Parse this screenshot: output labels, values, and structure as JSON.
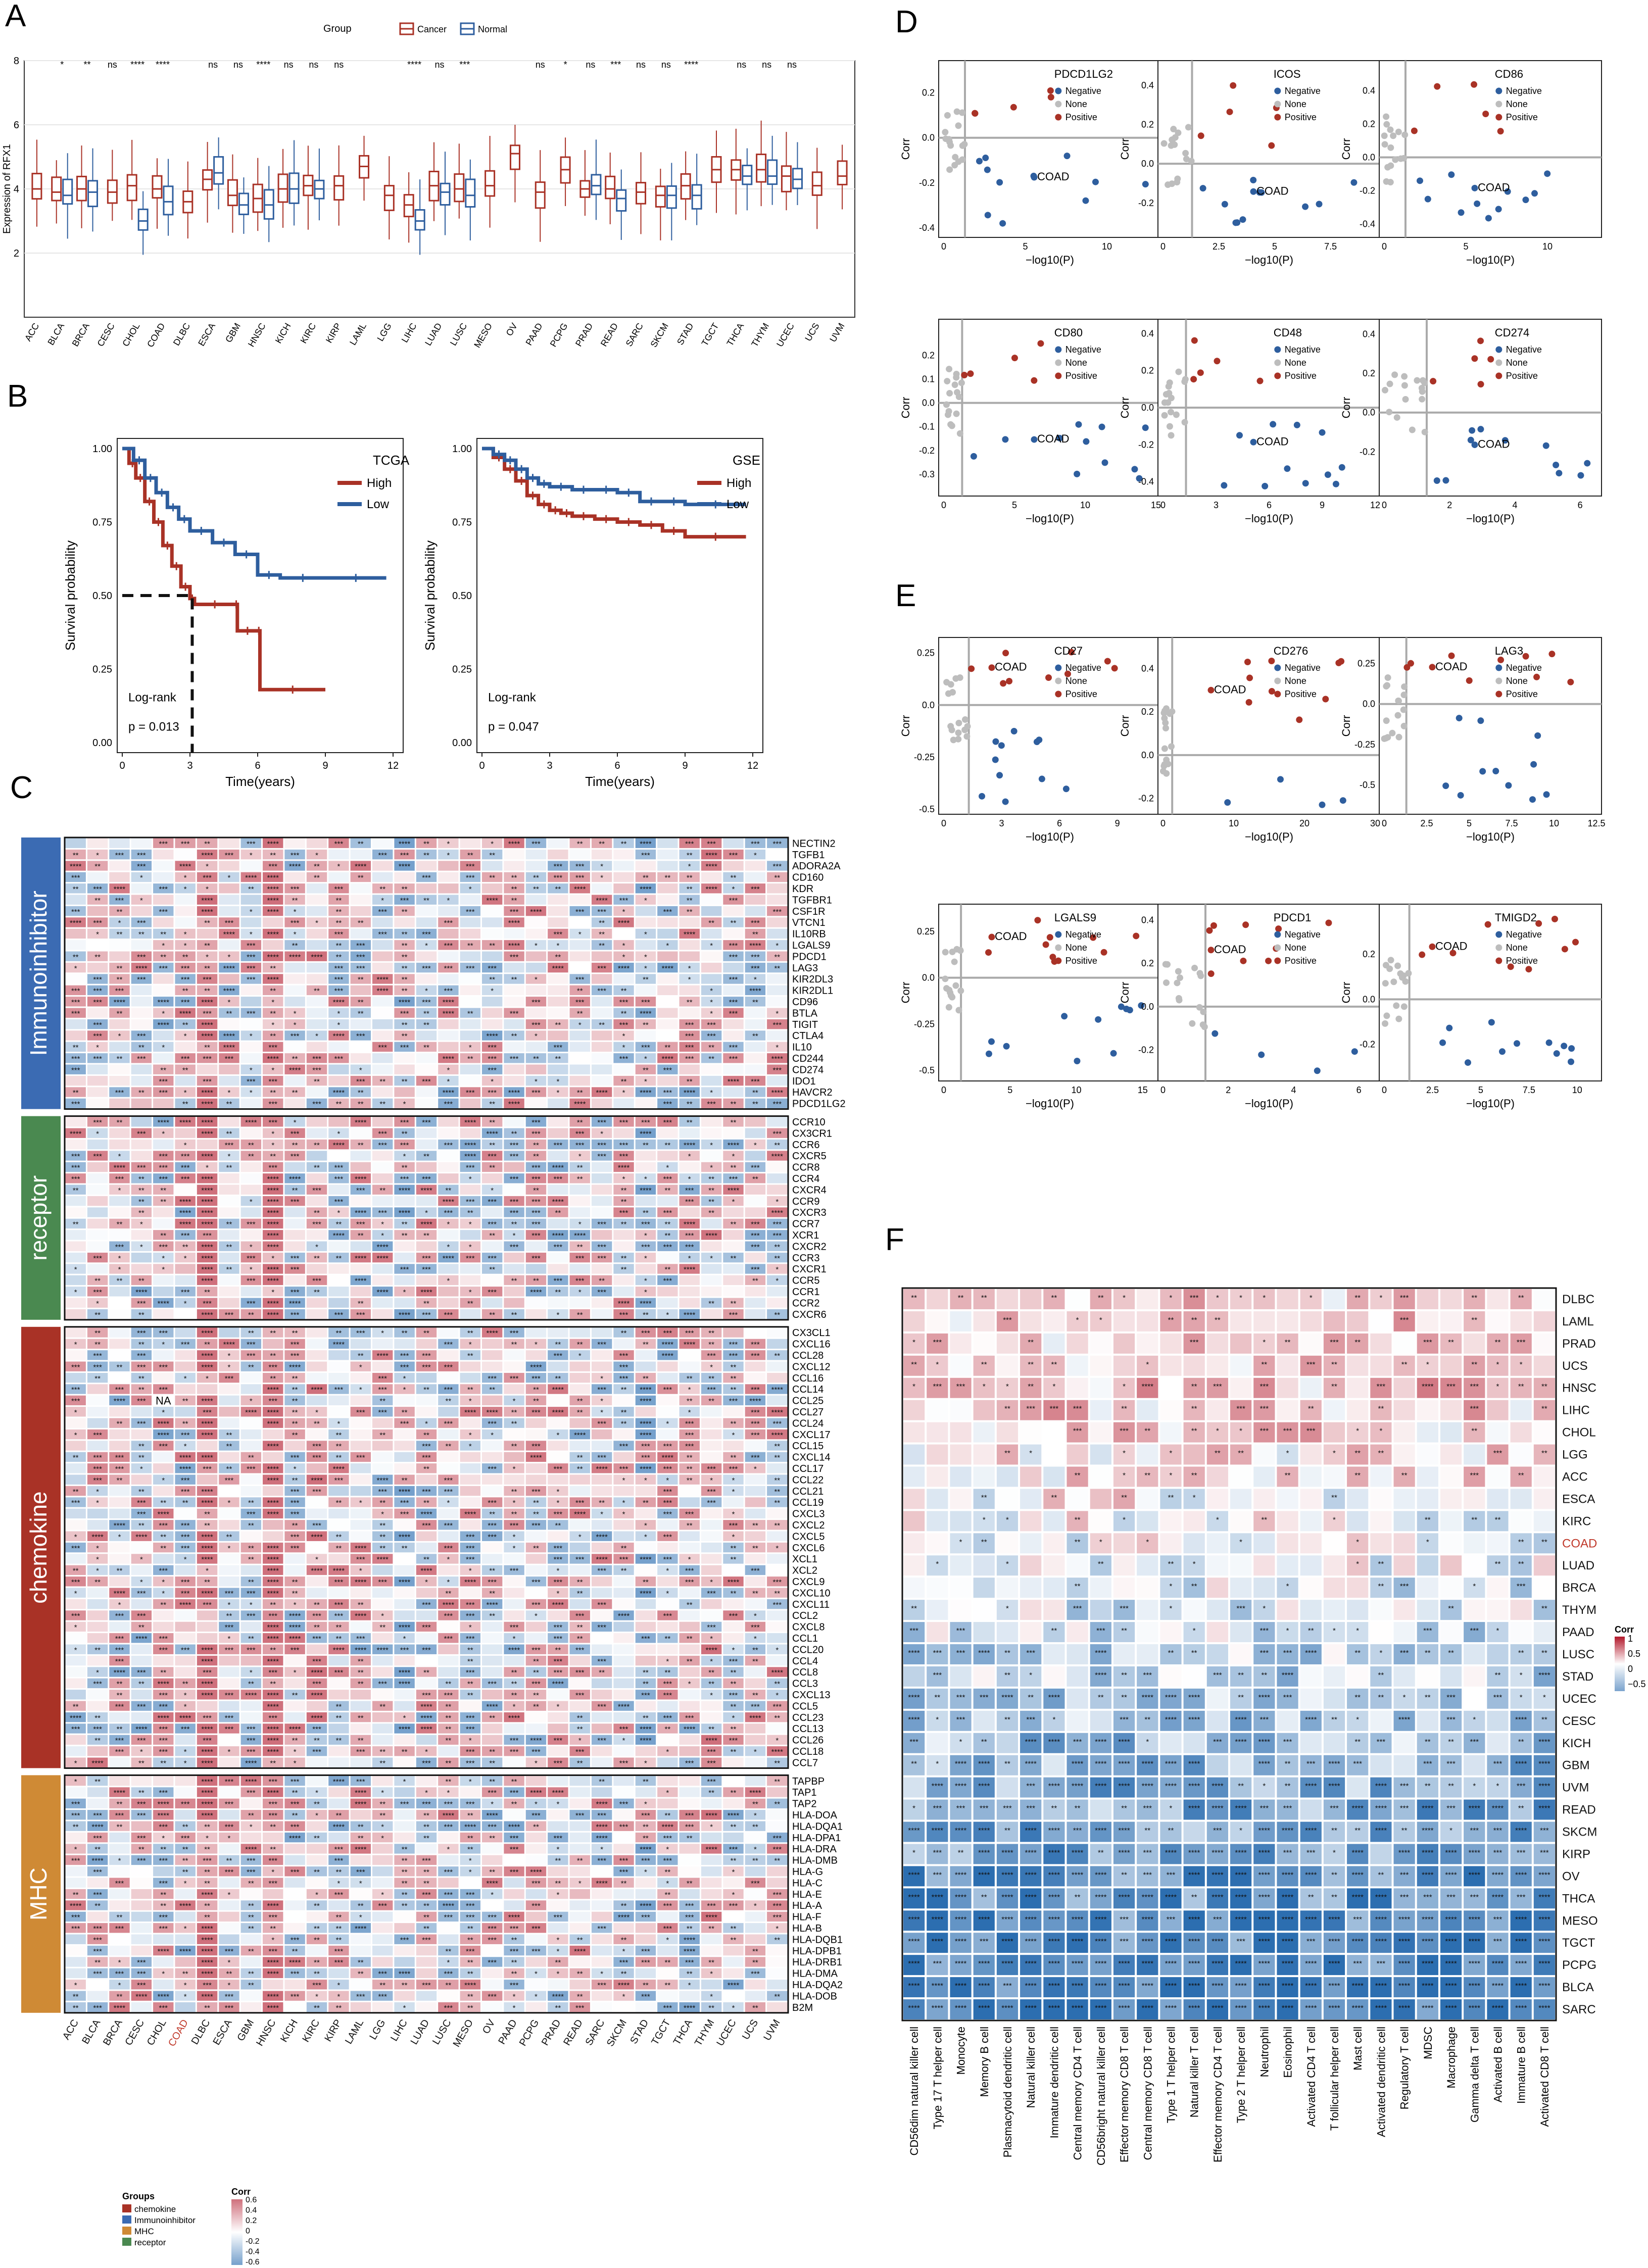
{
  "figure": {
    "panel_letters": [
      "A",
      "B",
      "C",
      "D",
      "E",
      "F"
    ]
  },
  "chart_data": [
    {
      "id": "A",
      "type": "boxplot",
      "ylabel": "Expression of RFX1",
      "ylim": [
        0,
        8
      ],
      "yticks": [
        2,
        4,
        6,
        8
      ],
      "legend_title": "Group",
      "legend": [
        "Cancer",
        "Normal"
      ],
      "colors": {
        "Cancer": "#A93226",
        "Normal": "#2E5E9E"
      },
      "categories": [
        "ACC",
        "BLCA",
        "BRCA",
        "CESC",
        "CHOL",
        "COAD",
        "DLBC",
        "ESCA",
        "GBM",
        "HNSC",
        "KICH",
        "KIRC",
        "KIRP",
        "LAML",
        "LGG",
        "LIHC",
        "LUAD",
        "LUSC",
        "MESO",
        "OV",
        "PAAD",
        "PCPG",
        "PRAD",
        "READ",
        "SARC",
        "SKCM",
        "STAD",
        "TGCT",
        "THCA",
        "THYM",
        "UCEC",
        "UCS",
        "UVM"
      ],
      "significance": [
        "",
        "*",
        "**",
        "ns",
        "****",
        "****",
        "",
        "ns",
        "ns",
        "****",
        "ns",
        "ns",
        "ns",
        "",
        "",
        "****",
        "ns",
        "***",
        "",
        "",
        "ns",
        "*",
        "ns",
        "***",
        "ns",
        "ns",
        "****",
        "",
        "ns",
        "ns",
        "ns",
        "",
        ""
      ],
      "cancer_median": [
        4.0,
        3.9,
        4.0,
        3.9,
        4.1,
        4.0,
        3.6,
        4.3,
        3.8,
        3.7,
        4.0,
        4.1,
        4.1,
        4.7,
        3.8,
        3.5,
        4.1,
        4.0,
        4.1,
        5.1,
        3.9,
        4.6,
        4.0,
        4.0,
        3.9,
        3.8,
        4.1,
        4.6,
        4.6,
        4.6,
        4.4,
        4.1,
        4.4
      ],
      "normal_median": [
        null,
        3.8,
        3.9,
        null,
        3.0,
        3.6,
        null,
        4.5,
        3.5,
        3.5,
        4.0,
        4.0,
        null,
        null,
        null,
        3.0,
        3.9,
        3.8,
        null,
        null,
        null,
        null,
        4.1,
        3.7,
        null,
        3.8,
        3.8,
        null,
        4.4,
        4.4,
        4.3,
        null,
        null
      ]
    },
    {
      "id": "B",
      "type": "line",
      "subtype": "kaplan-meier",
      "plots": [
        {
          "title": "TCGA",
          "xlabel": "Time(years)",
          "ylabel": "Survival probability",
          "xlim": [
            0,
            12
          ],
          "ylim": [
            0,
            1
          ],
          "xticks": [
            0,
            3,
            6,
            9,
            12
          ],
          "yticks": [
            "0.00",
            "0.25",
            "0.50",
            "0.75",
            "1.00"
          ],
          "test": "Log-rank",
          "p_value": "p = 0.013",
          "median_survival_high": 3.1,
          "series": [
            {
              "name": "High",
              "color": "#A93226",
              "x": [
                0,
                0.3,
                0.6,
                1,
                1.4,
                1.8,
                2.2,
                2.6,
                3.0,
                3.2,
                5.0,
                5.1,
                6.0,
                6.1,
                9.0
              ],
              "y": [
                1,
                0.95,
                0.9,
                0.82,
                0.75,
                0.67,
                0.6,
                0.53,
                0.49,
                0.47,
                0.47,
                0.38,
                0.38,
                0.18,
                0.18
              ]
            },
            {
              "name": "Low",
              "color": "#2E5E9E",
              "x": [
                0,
                0.5,
                1,
                1.5,
                2,
                2.5,
                3,
                4,
                5,
                6,
                7,
                9,
                11.7
              ],
              "y": [
                1,
                0.96,
                0.9,
                0.85,
                0.8,
                0.76,
                0.72,
                0.68,
                0.64,
                0.57,
                0.56,
                0.56,
                0.56
              ]
            }
          ]
        },
        {
          "title": "GSE",
          "xlabel": "Time(years)",
          "ylabel": "Survival probability",
          "xlim": [
            0,
            12
          ],
          "ylim": [
            0,
            1
          ],
          "xticks": [
            0,
            3,
            6,
            9,
            12
          ],
          "yticks": [
            "0.00",
            "0.25",
            "0.50",
            "0.75",
            "1.00"
          ],
          "test": "Log-rank",
          "p_value": "p = 0.047",
          "series": [
            {
              "name": "High",
              "color": "#A93226",
              "x": [
                0,
                0.5,
                1,
                1.5,
                2,
                2.5,
                3,
                3.5,
                4,
                5,
                6,
                7,
                8,
                9,
                11.7
              ],
              "y": [
                1,
                0.97,
                0.93,
                0.89,
                0.84,
                0.81,
                0.79,
                0.78,
                0.77,
                0.76,
                0.75,
                0.74,
                0.72,
                0.7,
                0.7
              ]
            },
            {
              "name": "Low",
              "color": "#2E5E9E",
              "x": [
                0,
                0.5,
                1,
                1.5,
                2,
                2.5,
                3,
                4,
                5,
                6,
                7,
                8,
                9,
                11.7
              ],
              "y": [
                1,
                0.98,
                0.96,
                0.93,
                0.9,
                0.88,
                0.87,
                0.86,
                0.86,
                0.85,
                0.82,
                0.82,
                0.81,
                0.81
              ]
            }
          ]
        }
      ]
    },
    {
      "id": "C",
      "type": "heatmap",
      "legend_title": "Corr",
      "legend_ticks": [
        "0.6",
        "0.4",
        "0.2",
        "0",
        "-0.2",
        "-0.4",
        "-0.6"
      ],
      "groups_title": "Groups",
      "groups": [
        {
          "name": "chemokine",
          "label": "chemokine",
          "color": "#A93226"
        },
        {
          "name": "Immunoinhibitor",
          "label": "Immunoinhibitor",
          "color": "#3B6BB3"
        },
        {
          "name": "MHC",
          "label": "MHC",
          "color": "#CF8A35"
        },
        {
          "name": "receptor",
          "label": "receptor",
          "color": "#4A8950"
        }
      ],
      "columns": [
        "ACC",
        "BLCA",
        "BRCA",
        "CESC",
        "CHOL",
        "COAD",
        "DLBC",
        "ESCA",
        "GBM",
        "HNSC",
        "KICH",
        "KIRC",
        "KIRP",
        "LAML",
        "LGG",
        "LIHC",
        "LUAD",
        "LUSC",
        "MESO",
        "OV",
        "PAAD",
        "PCPG",
        "PRAD",
        "READ",
        "SARC",
        "SKCM",
        "STAD",
        "TGCT",
        "THCA",
        "THYM",
        "UCEC",
        "UCS",
        "UVM"
      ],
      "highlight_column": "COAD",
      "na_label": "NA",
      "blocks": [
        {
          "group": "Immunoinhibitor",
          "rows": [
            "NECTIN2",
            "TGFB1",
            "ADORA2A",
            "CD160",
            "KDR",
            "TGFBR1",
            "CSF1R",
            "VTCN1",
            "IL10RB",
            "LGALS9",
            "PDCD1",
            "LAG3",
            "KIR2DL3",
            "KIR2DL1",
            "CD96",
            "BTLA",
            "TIGIT",
            "CTLA4",
            "IL10",
            "CD244",
            "CD274",
            "IDO1",
            "HAVCR2",
            "PDCD1LG2"
          ]
        },
        {
          "group": "receptor",
          "rows": [
            "CCR10",
            "CX3CR1",
            "CCR6",
            "CXCR5",
            "CCR8",
            "CCR4",
            "CXCR4",
            "CCR9",
            "CXCR3",
            "CCR7",
            "XCR1",
            "CXCR2",
            "CCR3",
            "CXCR1",
            "CCR5",
            "CCR1",
            "CCR2",
            "CXCR6"
          ]
        },
        {
          "group": "chemokine",
          "rows": [
            "CX3CL1",
            "CXCL16",
            "CCL28",
            "CXCL12",
            "CCL16",
            "CCL14",
            "CCL25",
            "CCL27",
            "CCL24",
            "CXCL17",
            "CCL15",
            "CXCL14",
            "CCL17",
            "CCL22",
            "CCL21",
            "CCL19",
            "CXCL3",
            "CXCL2",
            "CXCL5",
            "CXCL6",
            "XCL1",
            "XCL2",
            "CXCL9",
            "CXCL10",
            "CXCL11",
            "CCL2",
            "CXCL8",
            "CCL1",
            "CCL20",
            "CCL4",
            "CCL8",
            "CCL3",
            "CXCL13",
            "CCL5",
            "CCL23",
            "CCL13",
            "CCL26",
            "CCL18",
            "CCL7"
          ]
        },
        {
          "group": "MHC",
          "rows": [
            "TAPBP",
            "TAP1",
            "TAP2",
            "HLA-DOA",
            "HLA-DQA1",
            "HLA-DPA1",
            "HLA-DRA",
            "HLA-DMB",
            "HLA-G",
            "HLA-C",
            "HLA-E",
            "HLA-A",
            "HLA-F",
            "HLA-B",
            "HLA-DQB1",
            "HLA-DPB1",
            "HLA-DRB1",
            "HLA-DMA",
            "HLA-DQA2",
            "HLA-DOB",
            "B2M"
          ]
        }
      ]
    },
    {
      "id": "D",
      "type": "scatter",
      "xlabel": "−log10(P)",
      "ylabel": "Corr",
      "legend": [
        "Negative",
        "None",
        "Positive"
      ],
      "colors": {
        "Negative": "#2E5E9E",
        "None": "#BDBDBD",
        "Positive": "#A93226"
      },
      "label": "COAD",
      "plots": [
        {
          "title": "PDCD1LG2",
          "xlim": [
            0,
            13
          ],
          "xticks": [
            0,
            5,
            10
          ],
          "ylim": [
            -0.42,
            0.32
          ],
          "yticks": [
            -0.4,
            -0.2,
            0.0,
            0.2
          ],
          "threshold_x": 1.3
        },
        {
          "title": "ICOS",
          "xlim": [
            0,
            9.5
          ],
          "xticks": [
            0.0,
            2.5,
            5.0,
            7.5
          ],
          "ylim": [
            -0.35,
            0.5
          ],
          "yticks": [
            -0.2,
            0.0,
            0.2,
            0.4
          ],
          "threshold_x": 1.3
        },
        {
          "title": "CD86",
          "xlim": [
            0,
            13
          ],
          "xticks": [
            0,
            5,
            10
          ],
          "ylim": [
            -0.45,
            0.55
          ],
          "yticks": [
            -0.4,
            -0.2,
            0.0,
            0.2,
            0.4
          ],
          "threshold_x": 1.3
        },
        {
          "title": "CD80",
          "xlim": [
            0,
            15
          ],
          "xticks": [
            0,
            5,
            10,
            15
          ],
          "ylim": [
            -0.37,
            0.33
          ],
          "yticks": [
            -0.3,
            -0.2,
            -0.1,
            0.0,
            0.1,
            0.2
          ],
          "threshold_x": 1.3
        },
        {
          "title": "CD48",
          "xlim": [
            0,
            12
          ],
          "xticks": [
            0,
            3,
            6,
            9,
            12
          ],
          "ylim": [
            -0.45,
            0.45
          ],
          "yticks": [
            -0.4,
            -0.2,
            0.0,
            0.2,
            0.4
          ],
          "threshold_x": 1.3
        },
        {
          "title": "CD274",
          "xlim": [
            0,
            6.5
          ],
          "xticks": [
            0,
            2,
            4,
            6
          ],
          "ylim": [
            -0.4,
            0.45
          ],
          "yticks": [
            -0.2,
            0.0,
            0.2,
            0.4
          ],
          "threshold_x": 1.3
        }
      ]
    },
    {
      "id": "E",
      "type": "scatter",
      "xlabel": "−log10(P)",
      "ylabel": "Corr",
      "legend": [
        "Negative",
        "None",
        "Positive"
      ],
      "colors": {
        "Negative": "#2E5E9E",
        "None": "#BDBDBD",
        "Positive": "#A93226"
      },
      "label": "COAD",
      "plots": [
        {
          "title": "CD27",
          "xlim": [
            0,
            11
          ],
          "xticks": [
            0,
            3,
            6,
            9
          ],
          "ylim": [
            -0.5,
            0.3
          ],
          "yticks": [
            -0.5,
            -0.25,
            0.0,
            0.25
          ],
          "threshold_x": 1.3
        },
        {
          "title": "CD276",
          "xlim": [
            0,
            30
          ],
          "xticks": [
            0,
            10,
            20,
            30
          ],
          "ylim": [
            -0.25,
            0.52
          ],
          "yticks": [
            -0.2,
            0.0,
            0.2,
            0.4
          ],
          "threshold_x": 1.3
        },
        {
          "title": "LAG3",
          "xlim": [
            0,
            12.5
          ],
          "xticks": [
            0.0,
            2.5,
            5.0,
            7.5,
            10.0,
            12.5
          ],
          "ylim": [
            -0.65,
            0.38
          ],
          "yticks": [
            -0.5,
            -0.25,
            0.0,
            0.25
          ],
          "threshold_x": 1.3
        },
        {
          "title": "LGALS9",
          "xlim": [
            0,
            16
          ],
          "xticks": [
            0,
            5,
            10,
            15
          ],
          "ylim": [
            -0.53,
            0.37
          ],
          "yticks": [
            -0.5,
            -0.25,
            0.0,
            0.25
          ],
          "threshold_x": 1.3
        },
        {
          "title": "PDCD1",
          "xlim": [
            0,
            6.5
          ],
          "xticks": [
            0,
            2,
            4,
            6
          ],
          "ylim": [
            -0.32,
            0.45
          ],
          "yticks": [
            -0.2,
            0.0,
            0.2,
            0.4
          ],
          "threshold_x": 1.3
        },
        {
          "title": "TMIGD2",
          "xlim": [
            0,
            11
          ],
          "xticks": [
            0.0,
            2.5,
            5.0,
            7.5,
            10.0
          ],
          "ylim": [
            -0.34,
            0.4
          ],
          "yticks": [
            -0.2,
            0.0,
            0.2
          ],
          "threshold_x": 1.3
        }
      ]
    },
    {
      "id": "F",
      "type": "heatmap",
      "legend_title": "Corr",
      "legend_ticks": [
        "1",
        "0.5",
        "0",
        "−0.5"
      ],
      "rows": [
        "DLBC",
        "LAML",
        "PRAD",
        "UCS",
        "HNSC",
        "LIHC",
        "CHOL",
        "LGG",
        "ACC",
        "ESCA",
        "KIRC",
        "COAD",
        "LUAD",
        "BRCA",
        "THYM",
        "PAAD",
        "LUSC",
        "STAD",
        "UCEC",
        "CESC",
        "KICH",
        "GBM",
        "UVM",
        "READ",
        "SKCM",
        "KIRP",
        "OV",
        "THCA",
        "MESO",
        "TGCT",
        "PCPG",
        "BLCA",
        "SARC"
      ],
      "highlight_row": "COAD",
      "columns": [
        "CD56dim natural killer cell",
        "Type 17 T helper cell",
        "Monocyte",
        "Memory B cell",
        "Plasmacytoid dendritic cell",
        "Natural killer cell",
        "Immature dendritic cell",
        "Central memory CD4 T cell",
        "CD56bright natural killer cell",
        "Effector memory CD8 T cell",
        "Central memory CD8 T cell",
        "Type 1 T helper cell",
        "Natural killer T cell",
        "Effector memory CD4 T cell",
        "Type 2 T helper cell",
        "Neutrophil",
        "Eosinophil",
        "Activated CD4 T cell",
        "T follicular helper cell",
        "Mast cell",
        "Activated dendritic cell",
        "Regulatory T cell",
        "MDSC",
        "Macrophage",
        "Gamma delta T cell",
        "Activated B cell",
        "Immature B cell",
        "Activated CD8 T cell"
      ]
    }
  ]
}
